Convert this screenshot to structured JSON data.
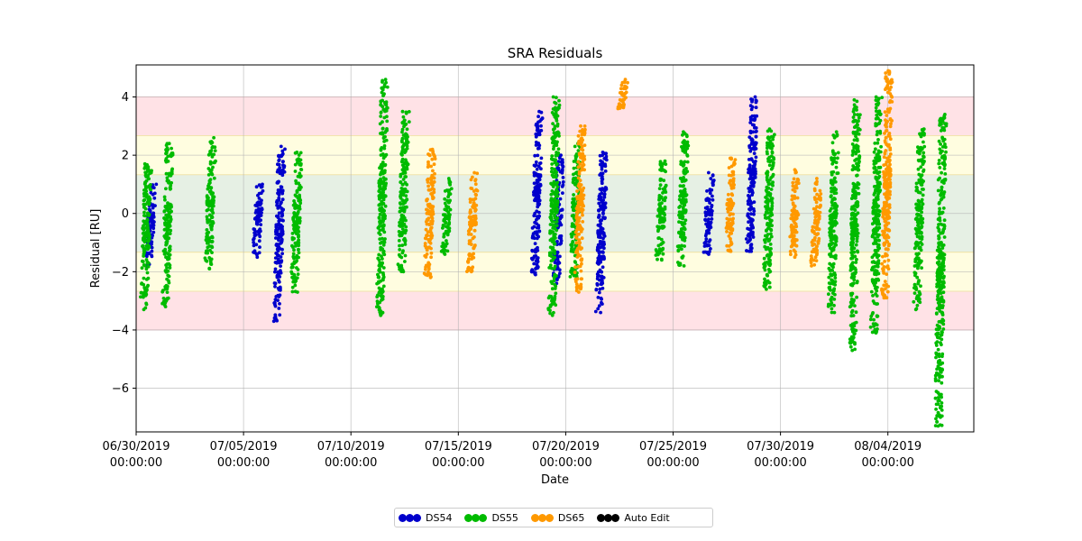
{
  "chart_data": {
    "type": "scatter",
    "title": "SRA Residuals",
    "xlabel": "Date",
    "ylabel": "Residual [RU]",
    "x_range": [
      "2019-06-30T00:00:00",
      "2019-08-08T00:00:00"
    ],
    "ylim": [
      -7.5,
      5.1
    ],
    "x_ticks": [
      {
        "date": "2019-06-30T00:00:00",
        "label_line1": "06/30/2019",
        "label_line2": "00:00:00"
      },
      {
        "date": "2019-07-05T00:00:00",
        "label_line1": "07/05/2019",
        "label_line2": "00:00:00"
      },
      {
        "date": "2019-07-10T00:00:00",
        "label_line1": "07/10/2019",
        "label_line2": "00:00:00"
      },
      {
        "date": "2019-07-15T00:00:00",
        "label_line1": "07/15/2019",
        "label_line2": "00:00:00"
      },
      {
        "date": "2019-07-20T00:00:00",
        "label_line1": "07/20/2019",
        "label_line2": "00:00:00"
      },
      {
        "date": "2019-07-25T00:00:00",
        "label_line1": "07/25/2019",
        "label_line2": "00:00:00"
      },
      {
        "date": "2019-07-30T00:00:00",
        "label_line1": "07/30/2019",
        "label_line2": "00:00:00"
      },
      {
        "date": "2019-08-04T00:00:00",
        "label_line1": "08/04/2019",
        "label_line2": "00:00:00"
      }
    ],
    "y_ticks": [
      -6,
      -4,
      -2,
      0,
      2,
      4
    ],
    "grid": true,
    "bands": [
      {
        "from": 1.33,
        "to": -1.33,
        "color": "#e6f0e4"
      },
      {
        "from": 2.67,
        "to": 1.33,
        "color": "#fffde0"
      },
      {
        "from": -1.33,
        "to": -2.67,
        "color": "#fffde0"
      },
      {
        "from": 4.0,
        "to": 2.67,
        "color": "#ffe2e6"
      },
      {
        "from": -2.67,
        "to": -4.0,
        "color": "#ffe2e6"
      }
    ],
    "series": [
      {
        "name": "DS54",
        "color": "#0000cc",
        "passes": [
          {
            "x": "2019-06-30T16:00:00",
            "ymin": -1.8,
            "ymax": 1.0
          },
          {
            "x": "2019-07-05T16:00:00",
            "ymin": -1.5,
            "ymax": 1.0
          },
          {
            "x": "2019-07-06T16:00:00",
            "ymin": -3.7,
            "ymax": 2.3
          },
          {
            "x": "2019-07-18T16:00:00",
            "ymin": -2.1,
            "ymax": 3.5
          },
          {
            "x": "2019-07-19T16:00:00",
            "ymin": -2.4,
            "ymax": 2.0
          },
          {
            "x": "2019-07-21T16:00:00",
            "ymin": -3.4,
            "ymax": 2.1
          },
          {
            "x": "2019-07-26T16:00:00",
            "ymin": -1.4,
            "ymax": 1.4
          },
          {
            "x": "2019-07-28T16:00:00",
            "ymin": -1.3,
            "ymax": 4.0
          }
        ]
      },
      {
        "name": "DS55",
        "color": "#00bb00",
        "passes": [
          {
            "x": "2019-06-30T11:00:00",
            "ymin": -3.3,
            "ymax": 1.7
          },
          {
            "x": "2019-07-01T11:00:00",
            "ymin": -3.2,
            "ymax": 2.4
          },
          {
            "x": "2019-07-03T11:00:00",
            "ymin": -1.9,
            "ymax": 2.6
          },
          {
            "x": "2019-07-07T11:00:00",
            "ymin": -2.7,
            "ymax": 2.1
          },
          {
            "x": "2019-07-11T11:00:00",
            "ymin": -3.5,
            "ymax": 4.6
          },
          {
            "x": "2019-07-12T11:00:00",
            "ymin": -2.0,
            "ymax": 3.5
          },
          {
            "x": "2019-07-14T11:00:00",
            "ymin": -1.4,
            "ymax": 1.2
          },
          {
            "x": "2019-07-19T11:00:00",
            "ymin": -3.5,
            "ymax": 4.0
          },
          {
            "x": "2019-07-20T11:00:00",
            "ymin": -2.2,
            "ymax": 2.4
          },
          {
            "x": "2019-07-24T11:00:00",
            "ymin": -1.6,
            "ymax": 1.8
          },
          {
            "x": "2019-07-25T11:00:00",
            "ymin": -1.8,
            "ymax": 2.8
          },
          {
            "x": "2019-07-29T11:00:00",
            "ymin": -2.6,
            "ymax": 2.9
          },
          {
            "x": "2019-08-01T11:00:00",
            "ymin": -3.4,
            "ymax": 2.8
          },
          {
            "x": "2019-08-02T11:00:00",
            "ymin": -4.7,
            "ymax": 3.9
          },
          {
            "x": "2019-08-03T11:00:00",
            "ymin": -4.1,
            "ymax": 4.0
          },
          {
            "x": "2019-08-05T11:00:00",
            "ymin": -3.3,
            "ymax": 2.9
          },
          {
            "x": "2019-08-06T11:00:00",
            "ymin": -7.3,
            "ymax": 3.4
          }
        ]
      },
      {
        "name": "DS65",
        "color": "#ff9900",
        "passes": [
          {
            "x": "2019-07-13T16:00:00",
            "ymin": -2.2,
            "ymax": 2.2
          },
          {
            "x": "2019-07-15T16:00:00",
            "ymin": -2.0,
            "ymax": 1.4
          },
          {
            "x": "2019-07-20T16:00:00",
            "ymin": -2.7,
            "ymax": 3.0
          },
          {
            "x": "2019-07-22T16:00:00",
            "ymin": 3.6,
            "ymax": 4.6
          },
          {
            "x": "2019-07-27T16:00:00",
            "ymin": -1.3,
            "ymax": 1.9
          },
          {
            "x": "2019-07-30T16:00:00",
            "ymin": -1.5,
            "ymax": 1.5
          },
          {
            "x": "2019-07-31T16:00:00",
            "ymin": -1.8,
            "ymax": 1.2
          },
          {
            "x": "2019-08-03T23:00:00",
            "ymin": -2.9,
            "ymax": 4.9
          }
        ]
      },
      {
        "name": "Auto Edit",
        "color": "#000000",
        "passes": []
      }
    ]
  },
  "legend": {
    "placement": "bottom-center",
    "items": [
      {
        "label": "DS54",
        "color": "#0000cc"
      },
      {
        "label": "DS55",
        "color": "#00bb00"
      },
      {
        "label": "DS65",
        "color": "#ff9900"
      },
      {
        "label": "Auto Edit",
        "color": "#000000"
      }
    ]
  }
}
